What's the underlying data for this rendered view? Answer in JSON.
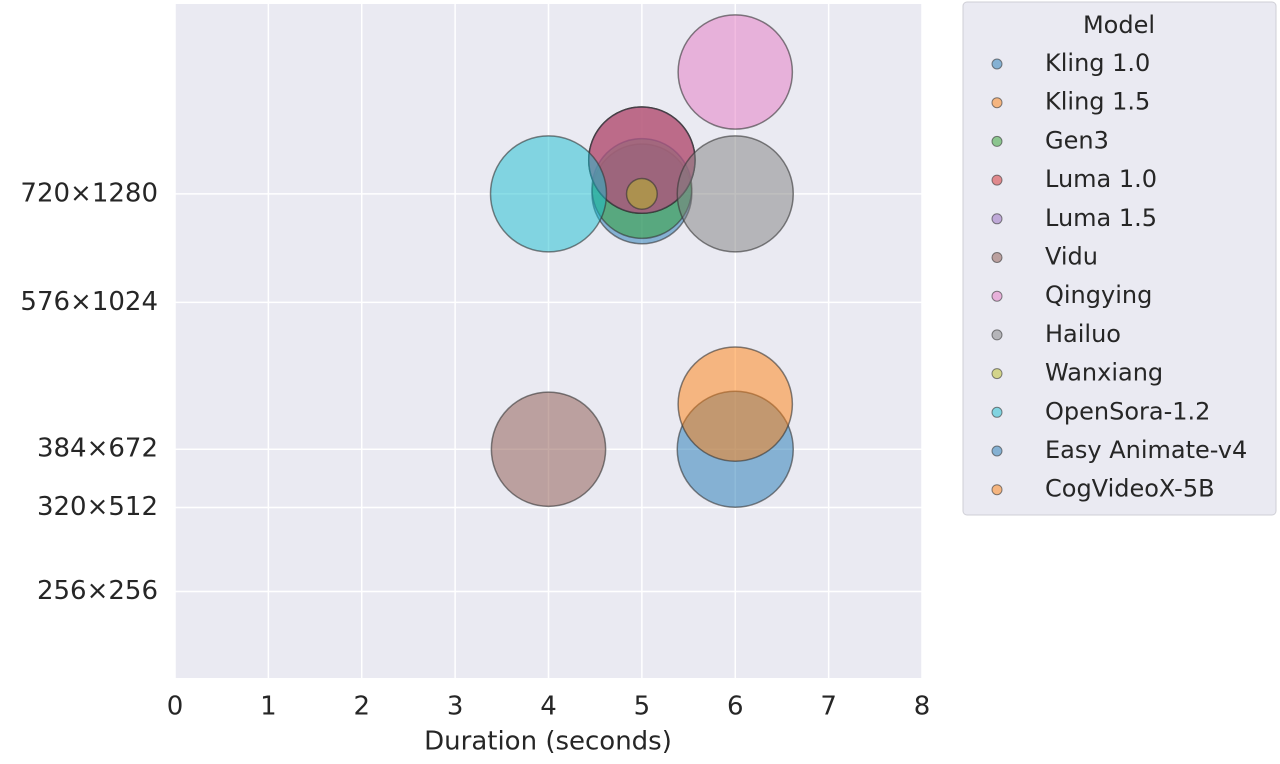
{
  "chart_data": {
    "type": "scatter",
    "xlabel": "Duration (seconds)",
    "legend_title": "Model",
    "xlim": [
      0,
      8
    ],
    "xticks": [
      0,
      1,
      2,
      3,
      4,
      5,
      6,
      7,
      8
    ],
    "yscale": "sqrt",
    "ylim": [
      10600,
      1680000
    ],
    "yticks": [
      {
        "value": 921600,
        "label": "720×1280"
      },
      {
        "value": 589824,
        "label": "576×1024"
      },
      {
        "value": 258048,
        "label": "384×672"
      },
      {
        "value": 163840,
        "label": "320×512"
      },
      {
        "value": 65536,
        "label": "256×256"
      }
    ],
    "grid": true,
    "legend": "outside right",
    "series": [
      {
        "name": "Kling 1.0",
        "color": "#1f77b4",
        "x": [
          5
        ],
        "values": [
          921600
        ],
        "sizes": [
          74
        ]
      },
      {
        "name": "Kling 1.5",
        "color": "#ff7f0e",
        "x": [
          5
        ],
        "values": [
          1040000
        ],
        "sizes": [
          84
        ]
      },
      {
        "name": "Gen3",
        "color": "#2ca02c",
        "x": [
          5
        ],
        "values": [
          940000
        ],
        "sizes": [
          74
        ]
      },
      {
        "name": "Luma 1.0",
        "color": "#d62728",
        "x": [
          5
        ],
        "values": [
          1040000
        ],
        "sizes": [
          84
        ]
      },
      {
        "name": "Luma 1.5",
        "color": "#9467bd",
        "x": [
          5
        ],
        "values": [
          1040000
        ],
        "sizes": [
          84
        ]
      },
      {
        "name": "Vidu",
        "color": "#8c564b",
        "x": [
          4
        ],
        "values": [
          258048
        ],
        "sizes": [
          97
        ]
      },
      {
        "name": "Qingying",
        "color": "#e377c2",
        "x": [
          6
        ],
        "values": [
          1382400
        ],
        "sizes": [
          97
        ]
      },
      {
        "name": "Hailuo",
        "color": "#7f7f7f",
        "x": [
          6
        ],
        "values": [
          921600
        ],
        "sizes": [
          100
        ]
      },
      {
        "name": "Wanxiang",
        "color": "#bcbd22",
        "x": [
          5
        ],
        "values": [
          921600
        ],
        "sizes": [
          7
        ]
      },
      {
        "name": "OpenSora-1.2",
        "color": "#17becf",
        "x": [
          4
        ],
        "values": [
          921600
        ],
        "sizes": [
          100
        ]
      },
      {
        "name": "Easy Animate-v4",
        "color": "#1f77b4",
        "x": [
          6
        ],
        "values": [
          258048
        ],
        "sizes": [
          100
        ]
      },
      {
        "name": "CogVideoX-5B",
        "color": "#ff7f0e",
        "x": [
          6
        ],
        "values": [
          345600
        ],
        "sizes": [
          97
        ]
      }
    ]
  }
}
